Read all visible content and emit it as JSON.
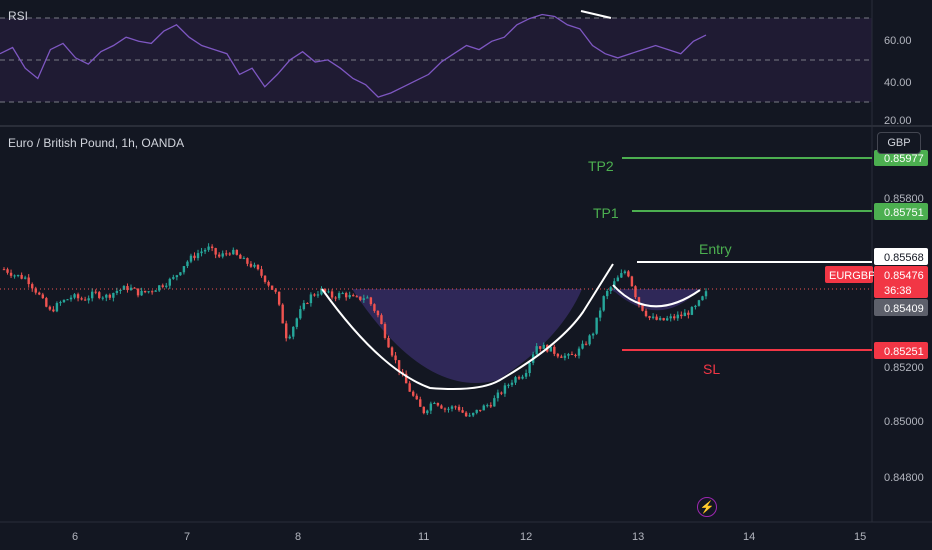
{
  "chart_title": "Euro / British Pound, 1h, OANDA",
  "rsi_title": "RSI",
  "currency_button": "GBP",
  "colors": {
    "background": "#131722",
    "up": "#26a69a",
    "down": "#ef5350",
    "rsi_line": "#7e57c2",
    "tp": "#4caf50",
    "sl": "#f23645",
    "entry": "#ffffff",
    "pattern_fill": "#3a2f6b"
  },
  "icons": {
    "bolt": "lightning-bolt-icon"
  },
  "levels": {
    "tp2_label": "TP2",
    "tp1_label": "TP1",
    "entry_label": "Entry",
    "sl_label": "SL",
    "tp2_value": "0.85977",
    "tp1_value": "0.85751",
    "entry_value": "0.85568",
    "current_symbol": "EURGBP",
    "current_value": "0.85476",
    "countdown": "36:38",
    "bid_value": "0.85409",
    "sl_value": "0.85251"
  },
  "chart_data": [
    {
      "type": "candlestick",
      "title": "Euro / British Pound, 1h, OANDA",
      "price_axis_ticks": [
        "0.85800",
        "0.85600",
        "0.85400",
        "0.85200",
        "0.85000",
        "0.84800"
      ],
      "x_ticks": [
        "6",
        "7",
        "8",
        "11",
        "12",
        "13",
        "14",
        "15"
      ],
      "ylim": [
        0.8473,
        0.8603
      ],
      "price_path": [
        0.8556,
        0.8554,
        0.8553,
        0.8548,
        0.8542,
        0.8545,
        0.8547,
        0.8546,
        0.8548,
        0.8547,
        0.8549,
        0.855,
        0.8548,
        0.8549,
        0.8551,
        0.8553,
        0.8558,
        0.8561,
        0.8563,
        0.856,
        0.8562,
        0.8559,
        0.8557,
        0.8553,
        0.8548,
        0.8533,
        0.8541,
        0.8547,
        0.8549,
        0.8547,
        0.8548,
        0.8546,
        0.8547,
        0.8541,
        0.8531,
        0.8522,
        0.8515,
        0.8509,
        0.8513,
        0.851,
        0.8511,
        0.8507,
        0.851,
        0.8512,
        0.8516,
        0.852,
        0.8522,
        0.8531,
        0.853,
        0.8528,
        0.8527,
        0.853,
        0.8535,
        0.8547,
        0.8552,
        0.8556,
        0.8545,
        0.854,
        0.8539,
        0.854,
        0.8541,
        0.8543,
        0.8548
      ],
      "candle_count": 200
    },
    {
      "type": "line",
      "title": "RSI",
      "y_ticks": [
        "60.00",
        "40.00",
        "20.00"
      ],
      "ylim": [
        18,
        78
      ],
      "bands": [
        30,
        50,
        70
      ],
      "values": [
        52,
        55,
        45,
        40,
        54,
        57,
        50,
        47,
        53,
        56,
        60,
        58,
        57,
        63,
        66,
        60,
        56,
        54,
        52,
        42,
        45,
        36,
        42,
        49,
        53,
        48,
        49,
        45,
        40,
        37,
        31,
        33,
        36,
        39,
        42,
        48,
        52,
        56,
        54,
        58,
        60,
        66,
        69,
        71,
        70,
        66,
        64,
        56,
        52,
        50,
        52,
        54,
        56,
        54,
        52,
        58,
        61
      ]
    }
  ]
}
